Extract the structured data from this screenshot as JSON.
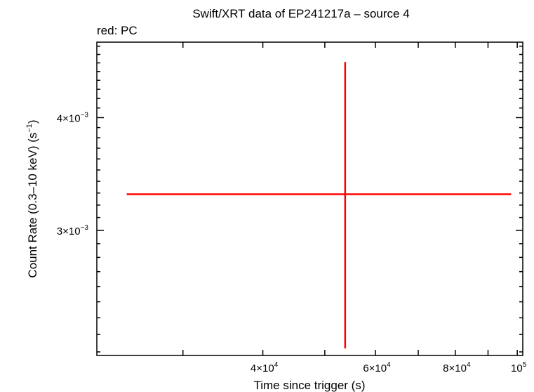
{
  "chart_data": {
    "type": "scatter",
    "title": "Swift/XRT data of EP241217a – source 4",
    "subtitle": "red: PC",
    "xlabel": "Time since trigger (s)",
    "ylabel_main": "Count Rate (0.3–10 keV) (s",
    "ylabel_sup": "−1",
    "ylabel_end": ")",
    "x_scale": "log",
    "y_scale": "log",
    "xlim": [
      22000,
      102000
    ],
    "ylim": [
      0.00218,
      0.00485
    ],
    "x_tick_labels": [
      {
        "value": 40000,
        "mant": "4×10",
        "exp": "4"
      },
      {
        "value": 60000,
        "mant": "6×10",
        "exp": "4"
      },
      {
        "value": 80000,
        "mant": "8×10",
        "exp": "4"
      },
      {
        "value": 100000,
        "mant": "10",
        "exp": "5"
      }
    ],
    "y_tick_labels": [
      {
        "value": 0.003,
        "mant": "3×10",
        "exp": "−3"
      },
      {
        "value": 0.004,
        "mant": "4×10",
        "exp": "−3"
      }
    ],
    "x_major_ticks": [
      30000,
      40000,
      50000,
      60000,
      70000,
      80000,
      90000,
      100000
    ],
    "y_minor_ticks": [
      0.0022,
      0.0023,
      0.0024,
      0.0025,
      0.0026,
      0.0027,
      0.0028,
      0.0029,
      0.0031,
      0.0032,
      0.0033,
      0.0034,
      0.0035,
      0.0036,
      0.0037,
      0.0038,
      0.0039,
      0.0041,
      0.0042,
      0.0043,
      0.0044,
      0.0045,
      0.0046,
      0.0047,
      0.0048
    ],
    "series": [
      {
        "color": "#ff0000",
        "points": [
          {
            "x": 53800,
            "x_lo": 24500,
            "x_hi": 97800,
            "y": 0.00329,
            "y_lo": 0.00222,
            "y_hi": 0.00461
          }
        ]
      }
    ],
    "grid": false,
    "legend": "none"
  }
}
